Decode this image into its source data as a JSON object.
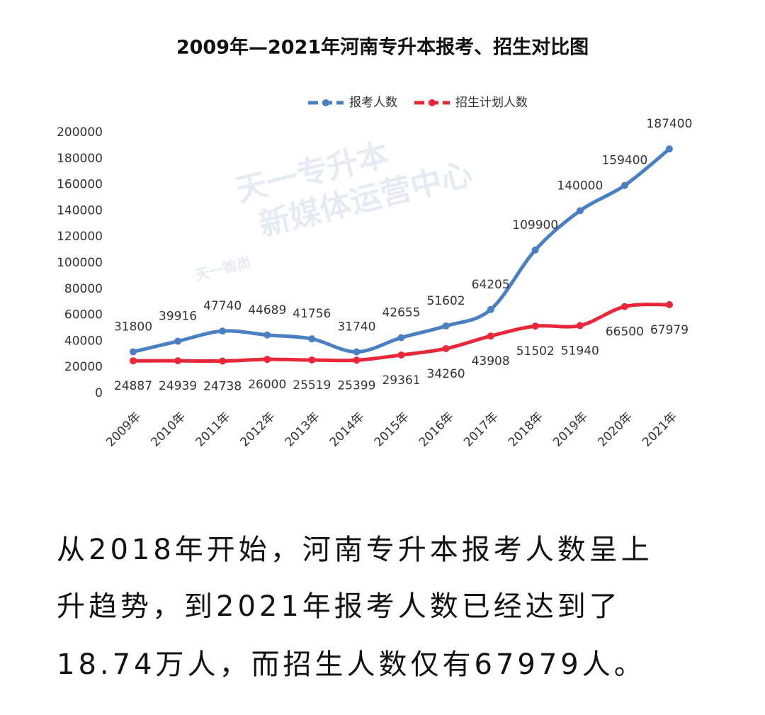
{
  "chart_data": {
    "type": "line",
    "title": "2009年—2021年河南专升本报考、招生对比图",
    "categories": [
      "2009年",
      "2010年",
      "2011年",
      "2012年",
      "2013年",
      "2014年",
      "2015年",
      "2016年",
      "2017年",
      "2018年",
      "2019年",
      "2020年",
      "2021年"
    ],
    "series": [
      {
        "name": "报考人数",
        "color": "#4a7fc1",
        "values": [
          31800,
          39916,
          47740,
          44689,
          41756,
          31740,
          42655,
          51602,
          64205,
          109900,
          140000,
          159400,
          187400
        ]
      },
      {
        "name": "招生计划人数",
        "color": "#e8283a",
        "values": [
          24887,
          24939,
          24738,
          26000,
          25519,
          25399,
          29361,
          34260,
          43908,
          51502,
          51940,
          66500,
          67979
        ]
      }
    ],
    "ylim": [
      0,
      200000
    ],
    "yticks": [
      0,
      20000,
      40000,
      60000,
      80000,
      100000,
      120000,
      140000,
      160000,
      180000,
      200000
    ],
    "legend": "top",
    "watermark": [
      "天一专升本",
      "新媒体运营中心",
      "天一镕尚"
    ]
  },
  "caption": [
    "从2018年开始，河南专升本报考人数呈上",
    "升趋势，到2021年报考人数已经达到了",
    "18.74万人，而招生人数仅有67979人。"
  ]
}
